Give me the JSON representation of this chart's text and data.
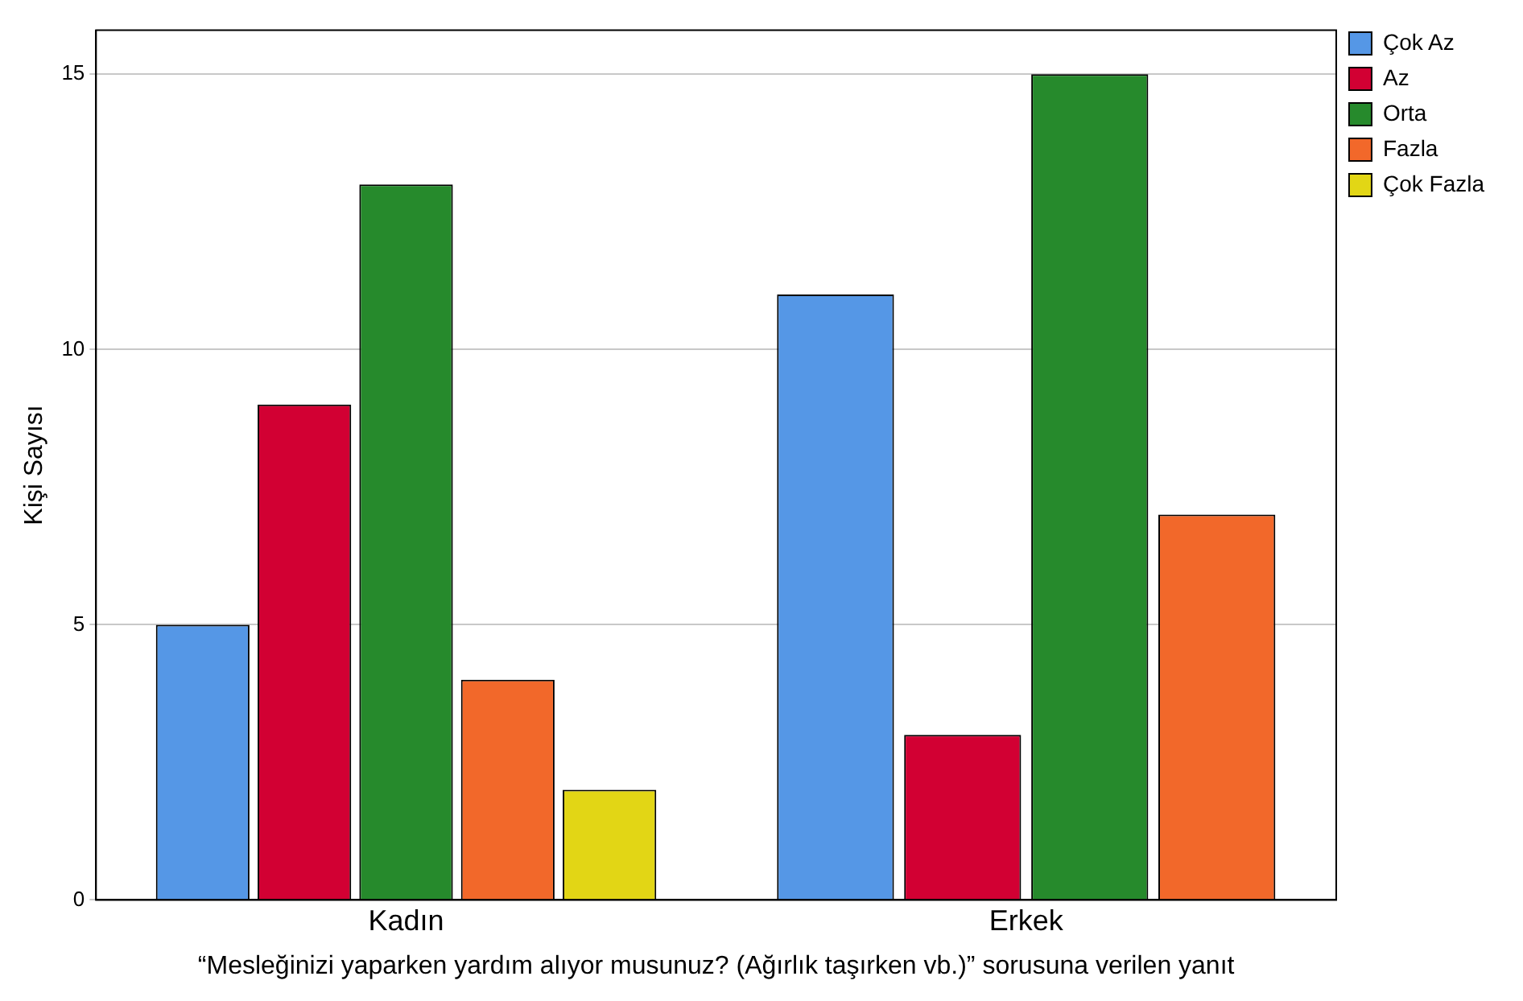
{
  "chart_data": {
    "type": "bar",
    "xlabel": "“Mesleğinizi yaparken yardım alıyor musunuz? (Ağırlık taşırken vb.)” sorusuna verilen yanıt",
    "ylabel": "Kişi Sayısı",
    "categories": [
      "Kadın",
      "Erkek"
    ],
    "series": [
      {
        "name": "Çok Az",
        "color": "#5597e6",
        "values": [
          5,
          11
        ]
      },
      {
        "name": "Az",
        "color": "#d20033",
        "values": [
          9,
          3
        ]
      },
      {
        "name": "Orta",
        "color": "#268a2c",
        "values": [
          13,
          15
        ]
      },
      {
        "name": "Fazla",
        "color": "#f2682a",
        "values": [
          4,
          7
        ]
      },
      {
        "name": "Çok Fazla",
        "color": "#e2d615",
        "values": [
          2,
          null
        ]
      }
    ],
    "ylim": [
      0,
      15.8
    ],
    "yticks": [
      0,
      5,
      10,
      15
    ],
    "grid": "y",
    "legend": "top right"
  }
}
